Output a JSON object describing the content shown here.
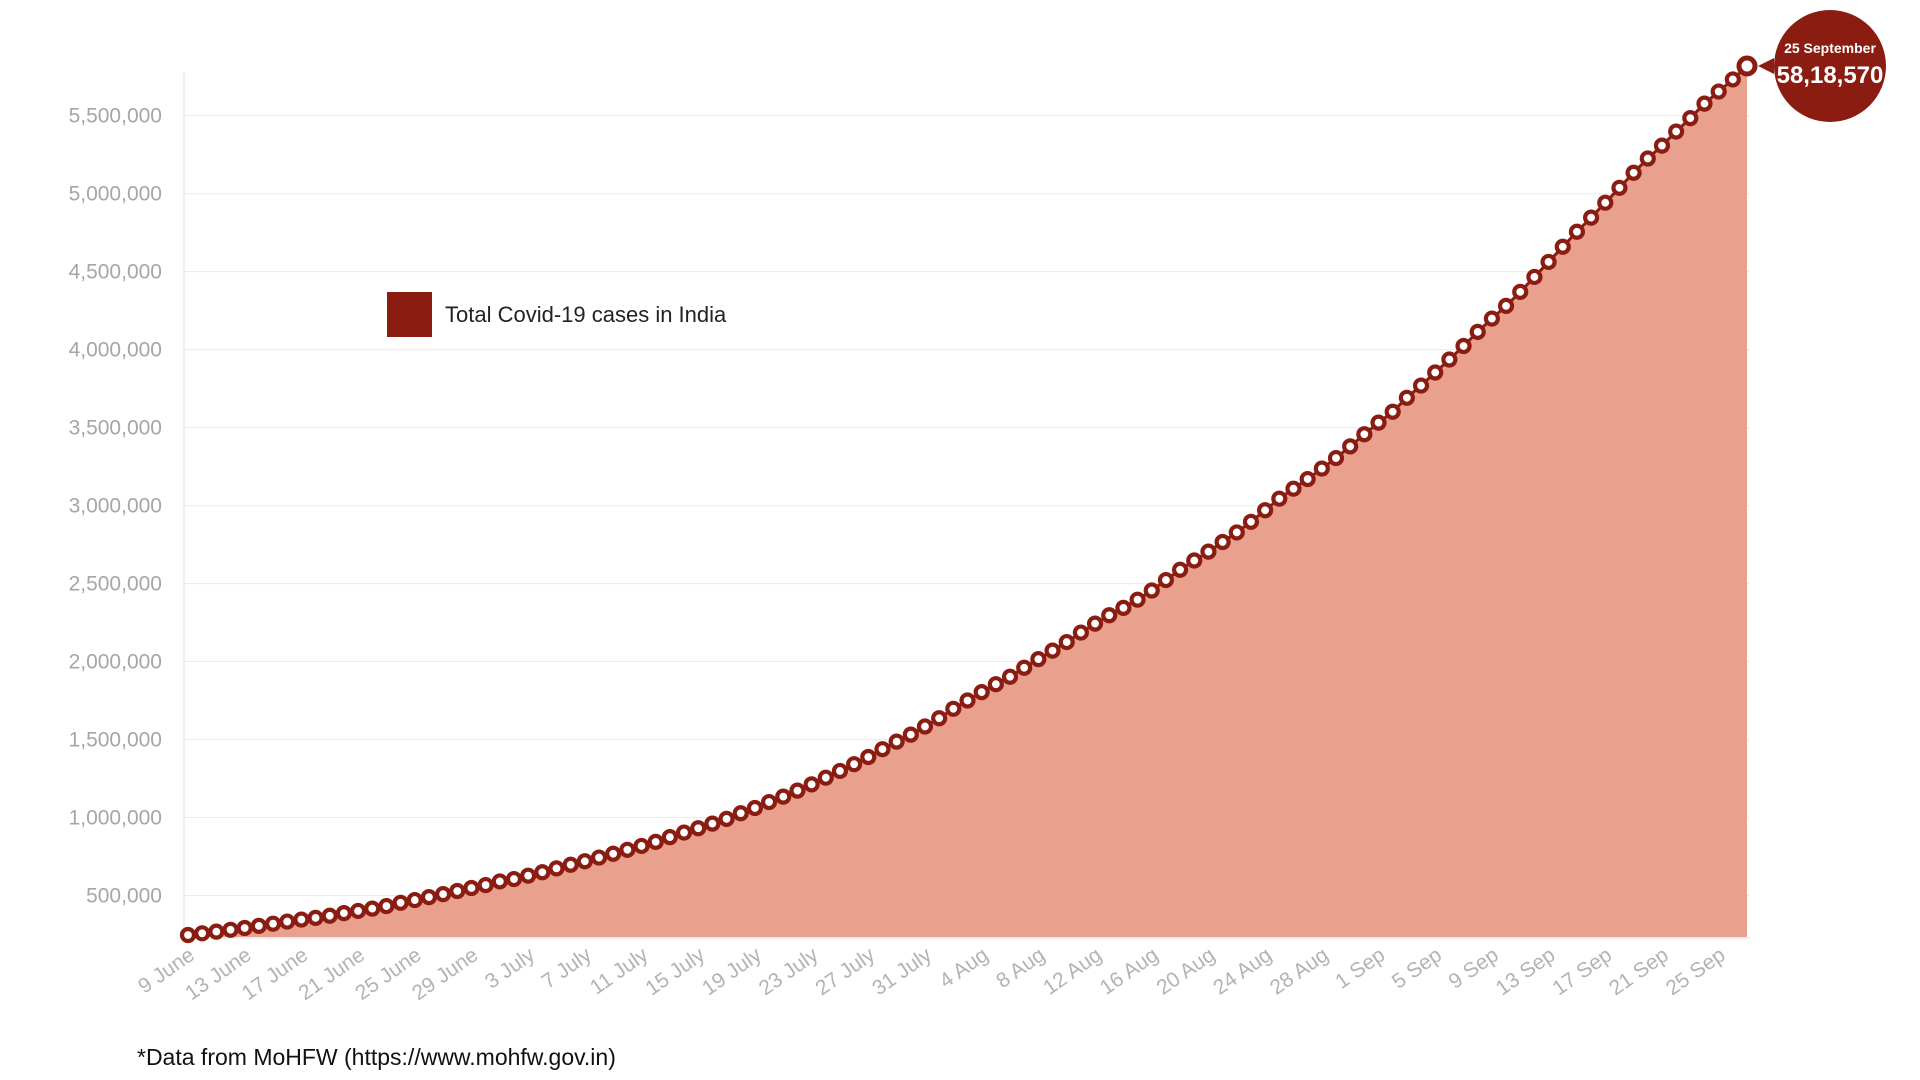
{
  "chart_data": {
    "type": "area",
    "legend": {
      "label": "Total Covid-19 cases in India",
      "color": "#8b1c12",
      "placement": "top-left"
    },
    "fill_color": "#e9a08c",
    "marker_color": "#8b1c12",
    "grid": true,
    "ylim": [
      246628,
      5818570
    ],
    "yticks": [
      500000,
      1000000,
      1500000,
      2000000,
      2500000,
      3000000,
      3500000,
      4000000,
      4500000,
      5000000,
      5500000
    ],
    "ytick_labels": [
      "500,000",
      "1,000,000",
      "1,500,000",
      "2,000,000",
      "2,500,000",
      "3,000,000",
      "3,500,000",
      "4,000,000",
      "4,500,000",
      "5,000,000",
      "5,500,000"
    ],
    "xtick_labels": [
      "9 June",
      "13 June",
      "17 June",
      "21 June",
      "25 June",
      "29 June",
      "3 July",
      "7 July",
      "11 July",
      "15 July",
      "19 July",
      "23 July",
      "27 July",
      "31 July",
      "4 Aug",
      "8 Aug",
      "12 Aug",
      "16 Aug",
      "20 Aug",
      "24 Aug",
      "28 Aug",
      "1 Sep",
      "5 Sep",
      "9 Sep",
      "13 Sep",
      "17 Sep",
      "21 Sep",
      "25 Sep"
    ],
    "x_start": "9 June",
    "x_end": "25 Sep",
    "series": [
      {
        "name": "Total Covid-19 cases in India",
        "values": [
          246628,
          257486,
          268180,
          280007,
          291734,
          305233,
          319226,
          332795,
          345665,
          356213,
          370074,
          387116,
          401035,
          415864,
          432127,
          453140,
          470555,
          489381,
          508970,
          528876,
          547877,
          566849,
          590157,
          605247,
          627031,
          649096,
          673909,
          697116,
          719665,
          743075,
          767753,
          792910,
          817603,
          843658,
          874154,
          903441,
          931069,
          960948,
          991461,
          1027245,
          1060852,
          1099106,
          1133921,
          1172446,
          1212241,
          1255373,
          1298506,
          1341891,
          1388071,
          1438157,
          1486468,
          1531613,
          1583792,
          1636403,
          1697054,
          1750124,
          1803696,
          1854784,
          1902781,
          1960231,
          2015312,
          2069968,
          2124834,
          2185713,
          2243226,
          2296791,
          2344371,
          2396638,
          2455318,
          2522543,
          2588669,
          2648037,
          2704725,
          2766667,
          2827937,
          2896024,
          2970253,
          3044311,
          3108232,
          3170155,
          3237329,
          3304698,
          3379696,
          3457363,
          3531761,
          3601436,
          3691166,
          3769523,
          3853407,
          3936747,
          4023173,
          4113843,
          4199143,
          4280423,
          4370201,
          4466064,
          4562205,
          4659747,
          4755849,
          4846427,
          4942091,
          5037590,
          5134235,
          5225361,
          5308116,
          5398304,
          5484519,
          5577087,
          5654678,
          5732527,
          5818570
        ]
      }
    ],
    "callout": {
      "date": "25 September",
      "value": "58,18,570"
    }
  },
  "footer": {
    "source": "*Data from MoHFW (https://www.mohfw.gov.in)"
  }
}
